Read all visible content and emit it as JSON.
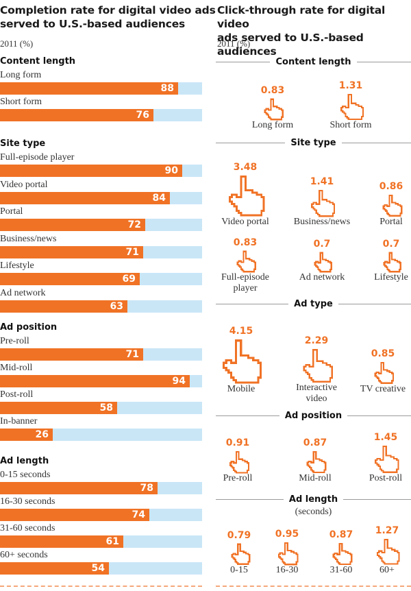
{
  "left": {
    "title_line1": "Completion rate for digital video ads",
    "title_line2": "served to U.S.-based audiences",
    "subtitle": "2011 (%)"
  },
  "right": {
    "title_line1": "Click-through rate for digital video",
    "title_line2": "ads served to U.S.-based audiences",
    "subtitle": "2011 (%)",
    "ad_length_note": "(seconds)"
  },
  "colors": {
    "bar": "#f07225",
    "bar_background": "#c9e6f7",
    "accent": "#f07225"
  },
  "chart_data": [
    {
      "type": "bar",
      "orientation": "horizontal",
      "title": "Completion rate for digital video ads served to U.S.-based audiences",
      "subtitle": "2011 (%)",
      "xlim": [
        0,
        100
      ],
      "groups": [
        {
          "name": "Content length",
          "categories": [
            "Long form",
            "Short form"
          ],
          "values": [
            88,
            76
          ]
        },
        {
          "name": "Site type",
          "categories": [
            "Full-episode player",
            "Video portal",
            "Portal",
            "Business/news",
            "Lifestyle",
            "Ad network"
          ],
          "values": [
            90,
            84,
            72,
            71,
            69,
            63
          ]
        },
        {
          "name": "Ad position",
          "categories": [
            "Pre-roll",
            "Mid-roll",
            "Post-roll",
            "In-banner"
          ],
          "values": [
            71,
            94,
            58,
            26
          ]
        },
        {
          "name": "Ad length",
          "categories": [
            "0-15 seconds",
            "16-30 seconds",
            "31-60 seconds",
            "60+ seconds"
          ],
          "values": [
            78,
            74,
            61,
            54
          ]
        }
      ]
    },
    {
      "type": "pictogram",
      "title": "Click-through rate for digital video ads served to U.S.-based audiences",
      "subtitle": "2011 (%)",
      "icon": "pointing-hand-cursor-icon",
      "groups": [
        {
          "name": "Content length",
          "categories": [
            "Long form",
            "Short form"
          ],
          "values": [
            0.83,
            1.31
          ]
        },
        {
          "name": "Site type",
          "categories": [
            "Video portal",
            "Business/news",
            "Portal",
            "Full-episode player",
            "Ad network",
            "Lifestyle"
          ],
          "values": [
            3.48,
            1.41,
            0.86,
            0.83,
            0.7,
            0.7
          ]
        },
        {
          "name": "Ad type",
          "categories": [
            "Mobile",
            "Interactive video",
            "TV creative"
          ],
          "values": [
            4.15,
            2.29,
            0.85
          ]
        },
        {
          "name": "Ad position",
          "categories": [
            "Pre-roll",
            "Mid-roll",
            "Post-roll"
          ],
          "values": [
            0.91,
            0.87,
            1.45
          ]
        },
        {
          "name": "Ad length",
          "note": "(seconds)",
          "categories": [
            "0-15",
            "16-30",
            "31-60",
            "60+"
          ],
          "values": [
            0.79,
            0.95,
            0.87,
            1.27
          ]
        }
      ]
    }
  ]
}
